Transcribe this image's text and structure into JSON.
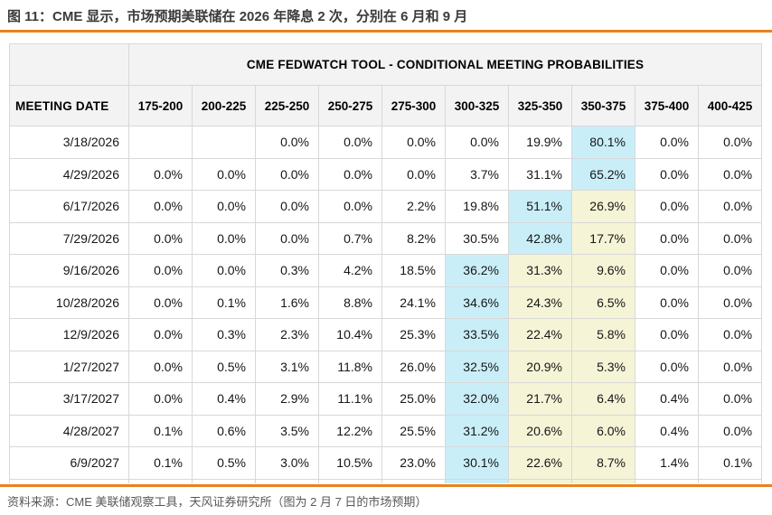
{
  "figure_caption": "图 11：CME 显示，市场预期美联储在 2026 年降息 2 次，分别在 6 月和 9 月",
  "source_note": "资料来源：CME 美联储观察工具，天风证券研究所（图为 2 月 7 日的市场预期）",
  "colors": {
    "accent_orange": "#e8821e",
    "highlight_blue": "#c9eef8",
    "highlight_yellow": "#f5f4d6",
    "header_bg": "#f3f3f3",
    "grid_border": "#d8d8d8"
  },
  "table": {
    "title": "CME FEDWATCH TOOL - CONDITIONAL MEETING PROBABILITIES",
    "row_header_label": "MEETING DATE",
    "rate_columns": [
      "175-200",
      "200-225",
      "225-250",
      "250-275",
      "275-300",
      "300-325",
      "325-350",
      "350-375",
      "375-400",
      "400-425"
    ],
    "rows": [
      {
        "date": "3/18/2026",
        "values": [
          "",
          "",
          "0.0%",
          "0.0%",
          "0.0%",
          "0.0%",
          "19.9%",
          "80.1%",
          "0.0%",
          "0.0%"
        ],
        "highlights": [
          "",
          "",
          "",
          "",
          "",
          "",
          "",
          "blue",
          "",
          ""
        ]
      },
      {
        "date": "4/29/2026",
        "values": [
          "0.0%",
          "0.0%",
          "0.0%",
          "0.0%",
          "0.0%",
          "3.7%",
          "31.1%",
          "65.2%",
          "0.0%",
          "0.0%"
        ],
        "highlights": [
          "",
          "",
          "",
          "",
          "",
          "",
          "",
          "blue",
          "",
          ""
        ]
      },
      {
        "date": "6/17/2026",
        "values": [
          "0.0%",
          "0.0%",
          "0.0%",
          "0.0%",
          "2.2%",
          "19.8%",
          "51.1%",
          "26.9%",
          "0.0%",
          "0.0%"
        ],
        "highlights": [
          "",
          "",
          "",
          "",
          "",
          "",
          "blue",
          "yellow",
          "",
          ""
        ]
      },
      {
        "date": "7/29/2026",
        "values": [
          "0.0%",
          "0.0%",
          "0.0%",
          "0.7%",
          "8.2%",
          "30.5%",
          "42.8%",
          "17.7%",
          "0.0%",
          "0.0%"
        ],
        "highlights": [
          "",
          "",
          "",
          "",
          "",
          "",
          "blue",
          "yellow",
          "",
          ""
        ]
      },
      {
        "date": "9/16/2026",
        "values": [
          "0.0%",
          "0.0%",
          "0.3%",
          "4.2%",
          "18.5%",
          "36.2%",
          "31.3%",
          "9.6%",
          "0.0%",
          "0.0%"
        ],
        "highlights": [
          "",
          "",
          "",
          "",
          "",
          "blue",
          "yellow",
          "yellow",
          "",
          ""
        ]
      },
      {
        "date": "10/28/2026",
        "values": [
          "0.0%",
          "0.1%",
          "1.6%",
          "8.8%",
          "24.1%",
          "34.6%",
          "24.3%",
          "6.5%",
          "0.0%",
          "0.0%"
        ],
        "highlights": [
          "",
          "",
          "",
          "",
          "",
          "blue",
          "yellow",
          "yellow",
          "",
          ""
        ]
      },
      {
        "date": "12/9/2026",
        "values": [
          "0.0%",
          "0.3%",
          "2.3%",
          "10.4%",
          "25.3%",
          "33.5%",
          "22.4%",
          "5.8%",
          "0.0%",
          "0.0%"
        ],
        "highlights": [
          "",
          "",
          "",
          "",
          "",
          "blue",
          "yellow",
          "yellow",
          "",
          ""
        ]
      },
      {
        "date": "1/27/2027",
        "values": [
          "0.0%",
          "0.5%",
          "3.1%",
          "11.8%",
          "26.0%",
          "32.5%",
          "20.9%",
          "5.3%",
          "0.0%",
          "0.0%"
        ],
        "highlights": [
          "",
          "",
          "",
          "",
          "",
          "blue",
          "yellow",
          "yellow",
          "",
          ""
        ]
      },
      {
        "date": "3/17/2027",
        "values": [
          "0.0%",
          "0.4%",
          "2.9%",
          "11.1%",
          "25.0%",
          "32.0%",
          "21.7%",
          "6.4%",
          "0.4%",
          "0.0%"
        ],
        "highlights": [
          "",
          "",
          "",
          "",
          "",
          "blue",
          "yellow",
          "yellow",
          "",
          ""
        ]
      },
      {
        "date": "4/28/2027",
        "values": [
          "0.1%",
          "0.6%",
          "3.5%",
          "12.2%",
          "25.5%",
          "31.2%",
          "20.6%",
          "6.0%",
          "0.4%",
          "0.0%"
        ],
        "highlights": [
          "",
          "",
          "",
          "",
          "",
          "blue",
          "yellow",
          "yellow",
          "",
          ""
        ]
      },
      {
        "date": "6/9/2027",
        "values": [
          "0.1%",
          "0.5%",
          "3.0%",
          "10.5%",
          "23.0%",
          "30.1%",
          "22.6%",
          "8.7%",
          "1.4%",
          "0.1%"
        ],
        "highlights": [
          "",
          "",
          "",
          "",
          "",
          "blue",
          "yellow",
          "yellow",
          "",
          ""
        ]
      }
    ],
    "clipped_partial_row": {
      "values": [
        "",
        "",
        "",
        "",
        "",
        "",
        "",
        "",
        "",
        ""
      ],
      "highlights": [
        "",
        "",
        "",
        "",
        "",
        "blue",
        "yellow",
        "yellow",
        "",
        ""
      ]
    }
  }
}
